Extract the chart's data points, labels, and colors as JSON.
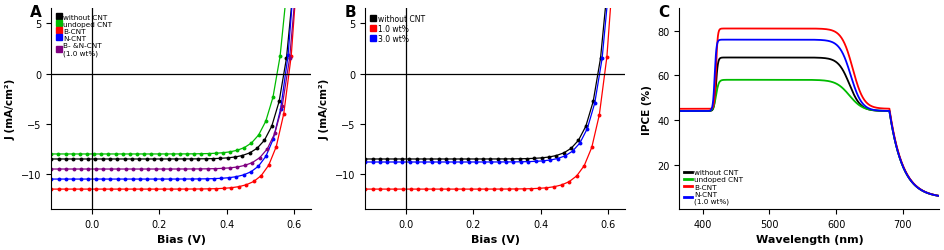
{
  "panel_A": {
    "label": "A",
    "xlabel": "Bias (V)",
    "ylabel": "J (mA/cm²)",
    "xlim": [
      -0.12,
      0.65
    ],
    "ylim": [
      -13.5,
      6.5
    ],
    "yticks": [
      5,
      0,
      -5,
      -10
    ],
    "xticks": [
      0.0,
      0.2,
      0.4,
      0.6
    ],
    "legend": [
      "without CNT",
      "undoped CNT",
      "B-CNT",
      "N-CNT",
      "B- &N-CNT\n(1.0 wt%)"
    ],
    "colors": [
      "black",
      "#00bb00",
      "red",
      "blue",
      "purple"
    ],
    "curves": [
      {
        "Jsc": -8.5,
        "Voc": 0.57,
        "FF": 0.6,
        "color": "black"
      },
      {
        "Jsc": -8.0,
        "Voc": 0.55,
        "FF": 0.55,
        "color": "#00bb00"
      },
      {
        "Jsc": -11.5,
        "Voc": 0.585,
        "FF": 0.62,
        "color": "red"
      },
      {
        "Jsc": -10.5,
        "Voc": 0.575,
        "FF": 0.6,
        "color": "blue"
      },
      {
        "Jsc": -9.5,
        "Voc": 0.58,
        "FF": 0.61,
        "color": "purple"
      }
    ]
  },
  "panel_B": {
    "label": "B",
    "xlabel": "Bias (V)",
    "ylabel": "J (mA/cm²)",
    "xlim": [
      -0.12,
      0.65
    ],
    "ylim": [
      -13.5,
      6.5
    ],
    "yticks": [
      5,
      0,
      -5,
      -10
    ],
    "xticks": [
      0.0,
      0.2,
      0.4,
      0.6
    ],
    "legend": [
      "without CNT",
      "1.0 wt%",
      "3.0 wt%"
    ],
    "colors": [
      "black",
      "red",
      "blue"
    ],
    "curves": [
      {
        "Jsc": -8.5,
        "Voc": 0.57,
        "FF": 0.6,
        "color": "black"
      },
      {
        "Jsc": -11.5,
        "Voc": 0.59,
        "FF": 0.62,
        "color": "red"
      },
      {
        "Jsc": -8.8,
        "Voc": 0.575,
        "FF": 0.65,
        "color": "blue"
      }
    ]
  },
  "panel_C": {
    "label": "C",
    "xlabel": "Wavelength (nm)",
    "ylabel": "IPCE (%)",
    "xlim": [
      365,
      755
    ],
    "ylim": [
      0,
      90
    ],
    "yticks": [
      20,
      40,
      60,
      80
    ],
    "xticks": [
      400,
      500,
      600,
      700
    ],
    "legend": [
      "without CNT",
      "undoped CNT",
      "B-CNT",
      "N-CNT\n(1.0 wt%)"
    ],
    "colors": [
      "black",
      "#00bb00",
      "red",
      "blue"
    ],
    "ipce": [
      {
        "color": "black",
        "peak_wl": 530,
        "peak_val": 68,
        "base_low": 44,
        "base_high": 5,
        "wl_rise": 420,
        "wl_fall": 620,
        "slope_rise": 0.7,
        "slope_fall": 0.12
      },
      {
        "color": "#00bb00",
        "peak_wl": 535,
        "peak_val": 58,
        "base_low": 44,
        "base_high": 5,
        "wl_rise": 420,
        "wl_fall": 620,
        "slope_rise": 0.5,
        "slope_fall": 0.1
      },
      {
        "color": "red",
        "peak_wl": 525,
        "peak_val": 81,
        "base_low": 45,
        "base_high": 5,
        "wl_rise": 420,
        "wl_fall": 625,
        "slope_rise": 0.8,
        "slope_fall": 0.12
      },
      {
        "color": "blue",
        "peak_wl": 520,
        "peak_val": 76,
        "base_low": 44,
        "base_high": 5,
        "wl_rise": 418,
        "wl_fall": 622,
        "slope_rise": 0.75,
        "slope_fall": 0.12
      }
    ]
  }
}
